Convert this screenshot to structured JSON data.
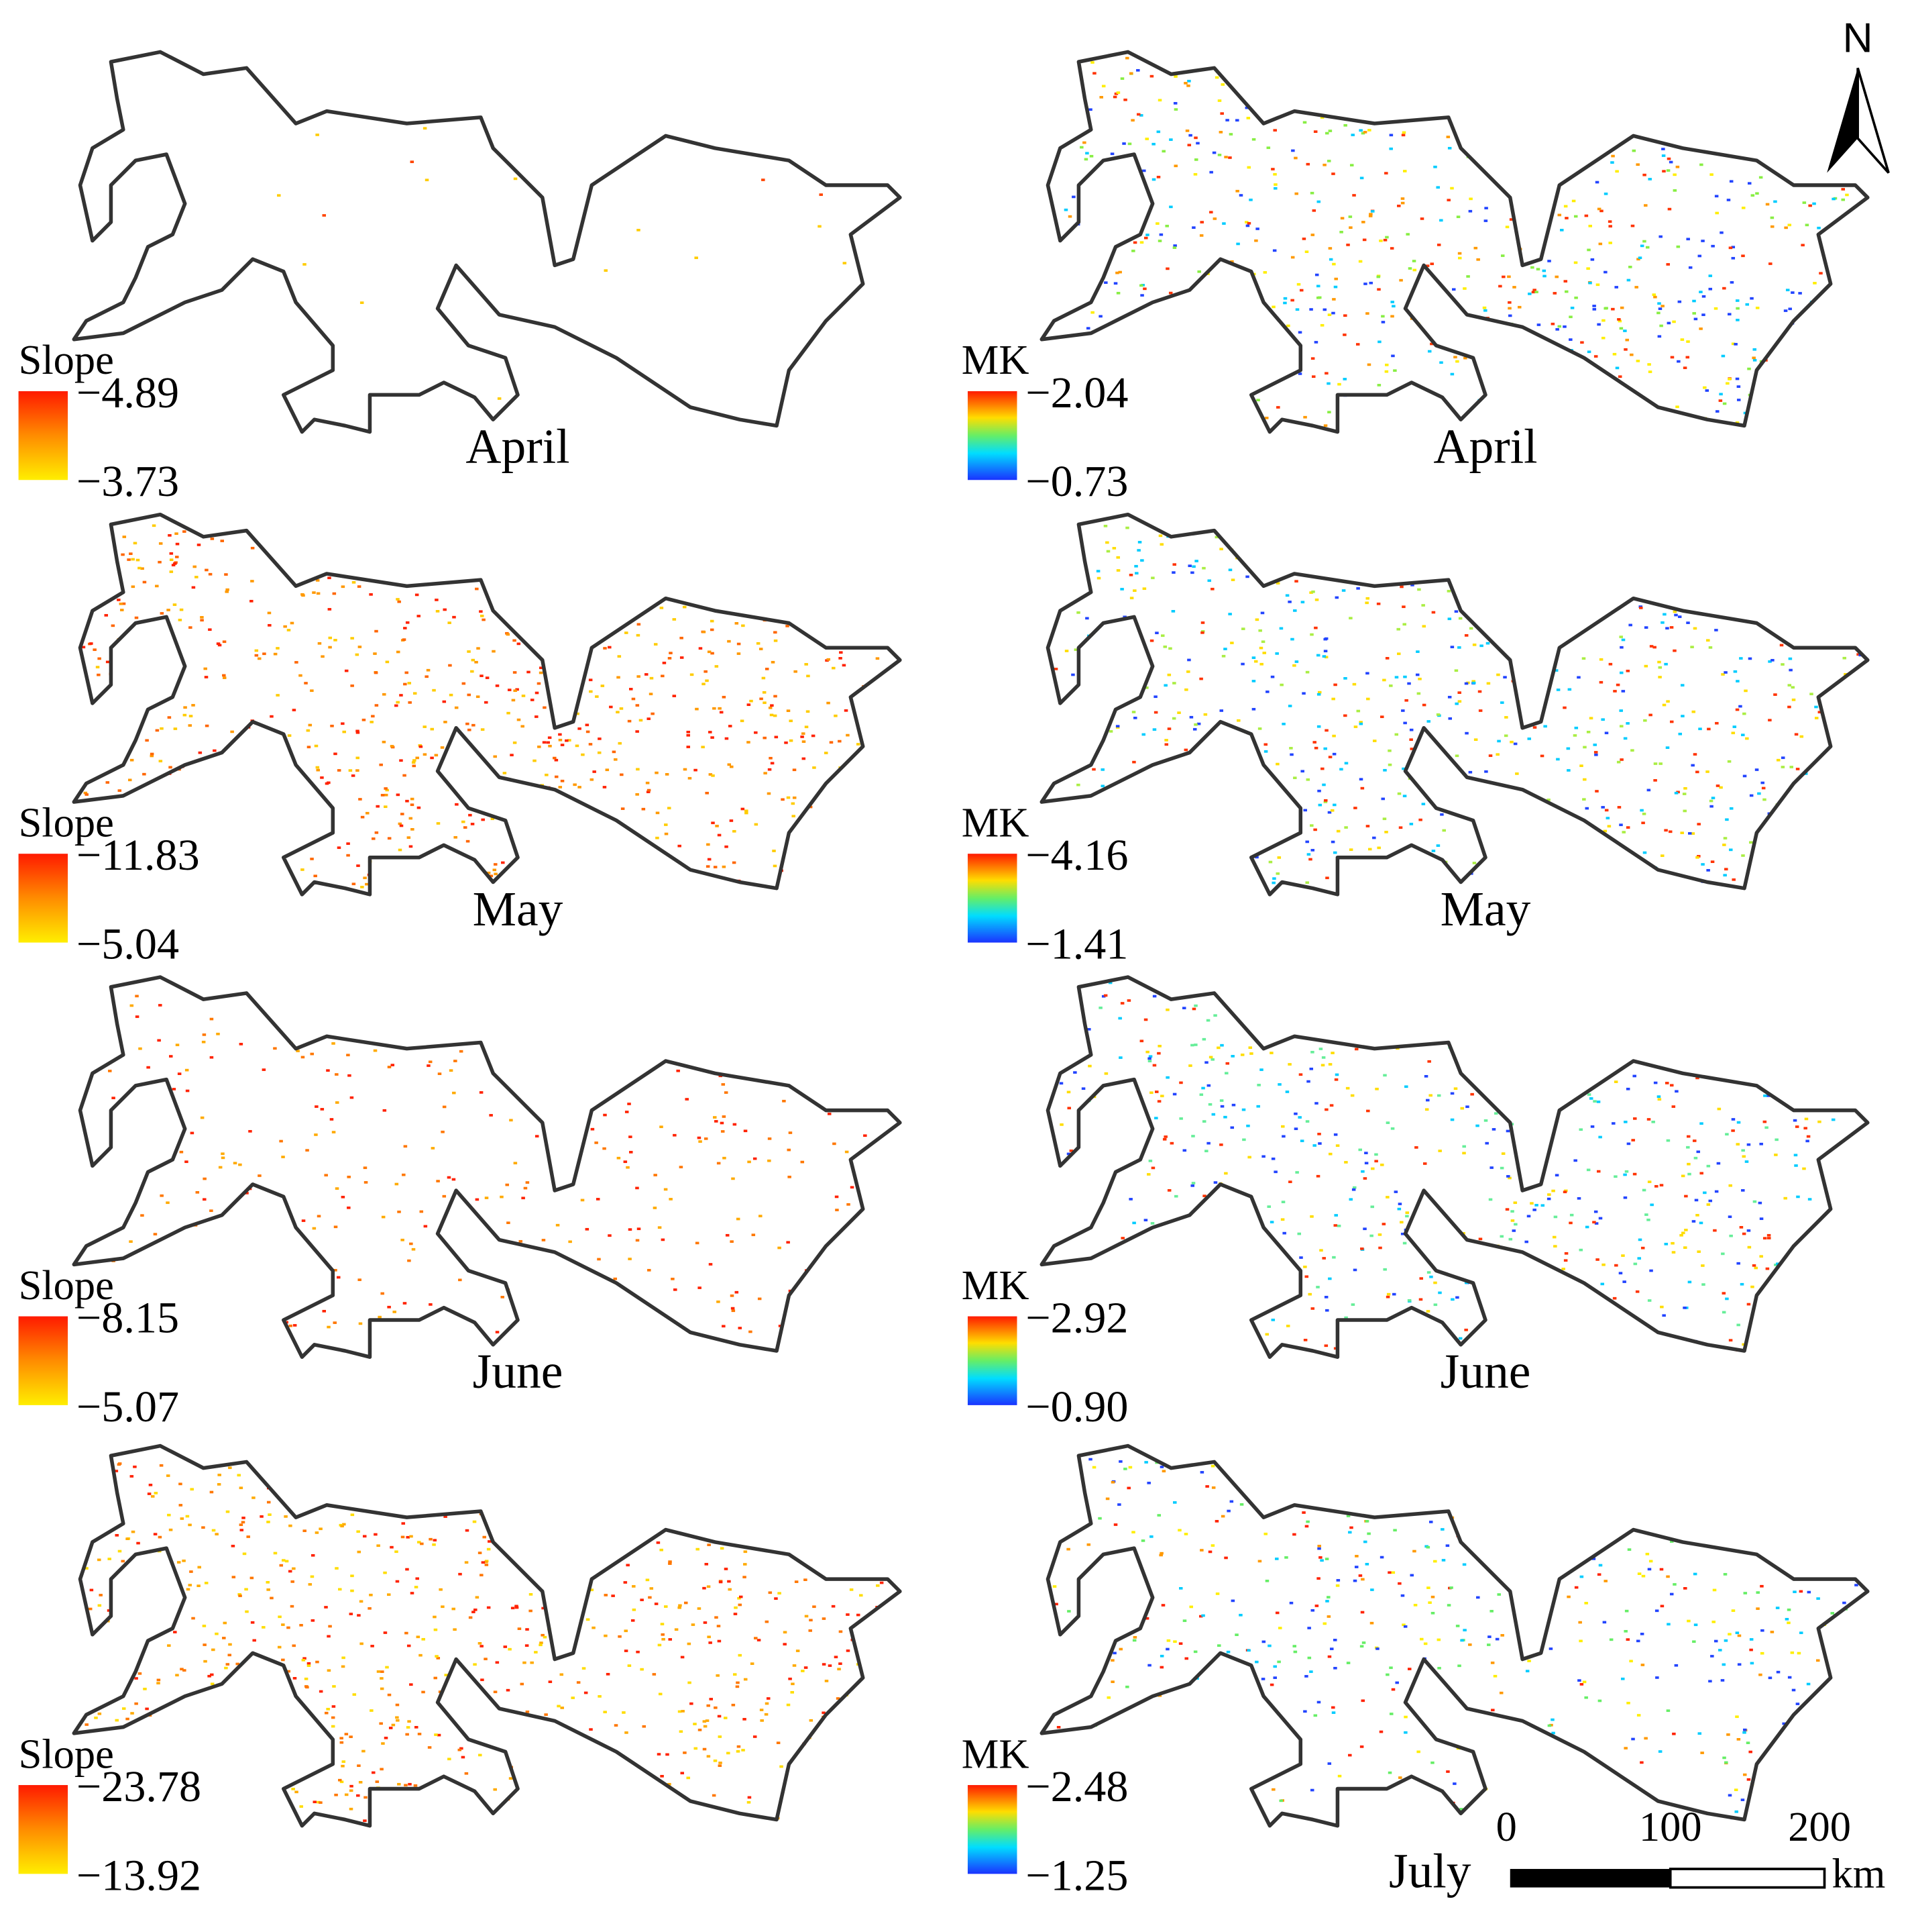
{
  "panels": [
    {
      "legend_title": "Slope",
      "max": "−4.89",
      "min": "−3.73",
      "month": "April"
    },
    {
      "legend_title": "MK",
      "max": "−2.04",
      "min": "−0.73",
      "month": "April"
    },
    {
      "legend_title": "Slope",
      "max": "−11.83",
      "min": "−5.04",
      "month": "May"
    },
    {
      "legend_title": "MK",
      "max": "−4.16",
      "min": "−1.41",
      "month": "May"
    },
    {
      "legend_title": "Slope",
      "max": "−8.15",
      "min": "−5.07",
      "month": "June"
    },
    {
      "legend_title": "MK",
      "max": "−2.92",
      "min": "−0.90",
      "month": "June"
    },
    {
      "legend_title": "Slope",
      "max": "−23.78",
      "min": "−13.92"
    },
    {
      "legend_title": "MK",
      "max": "−2.48",
      "min": "−1.25",
      "month": "July"
    }
  ],
  "north": "N",
  "scale_bar": {
    "ticks": [
      "0",
      "100",
      "200"
    ],
    "unit": "km"
  }
}
